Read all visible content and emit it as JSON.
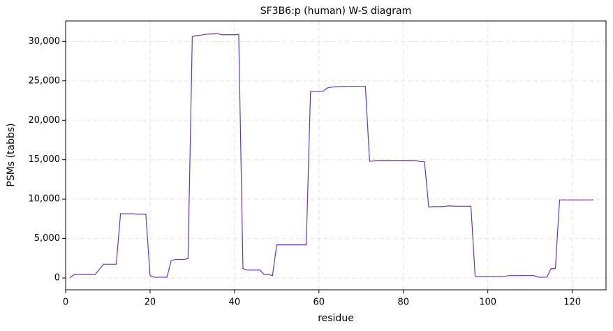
{
  "chart_data": {
    "type": "line",
    "title": "SF3B6:p (human) W-S diagram",
    "xlabel": "residue",
    "ylabel": "PSMs (tabbs)",
    "x": [
      1,
      2,
      3,
      4,
      5,
      6,
      7,
      8,
      9,
      10,
      11,
      12,
      13,
      14,
      15,
      16,
      17,
      18,
      19,
      20,
      21,
      22,
      23,
      24,
      25,
      26,
      27,
      28,
      29,
      30,
      31,
      32,
      33,
      34,
      35,
      36,
      37,
      38,
      39,
      40,
      41,
      42,
      43,
      44,
      45,
      46,
      47,
      48,
      49,
      50,
      51,
      52,
      53,
      54,
      55,
      56,
      57,
      58,
      59,
      60,
      61,
      62,
      63,
      64,
      65,
      66,
      67,
      68,
      69,
      70,
      71,
      72,
      73,
      74,
      75,
      76,
      77,
      78,
      79,
      80,
      81,
      82,
      83,
      84,
      85,
      86,
      87,
      88,
      89,
      90,
      91,
      92,
      93,
      94,
      95,
      96,
      97,
      98,
      99,
      100,
      101,
      102,
      103,
      104,
      105,
      106,
      107,
      108,
      109,
      110,
      111,
      112,
      113,
      114,
      115,
      116,
      117,
      118,
      119,
      120,
      121,
      122,
      123,
      124,
      125
    ],
    "series": [
      {
        "name": "PSMs",
        "color": "#6633cc",
        "values": [
          0,
          450,
          450,
          450,
          450,
          450,
          450,
          1100,
          1750,
          1750,
          1750,
          1750,
          8150,
          8150,
          8150,
          8150,
          8100,
          8100,
          8100,
          300,
          100,
          100,
          100,
          100,
          2200,
          2350,
          2350,
          2350,
          2450,
          30600,
          30750,
          30800,
          30900,
          30950,
          30950,
          31000,
          30850,
          30850,
          30850,
          30850,
          30900,
          1200,
          1000,
          1000,
          1000,
          1000,
          450,
          450,
          300,
          4200,
          4200,
          4200,
          4200,
          4200,
          4200,
          4200,
          4200,
          23650,
          23650,
          23650,
          23700,
          24100,
          24200,
          24250,
          24300,
          24300,
          24300,
          24300,
          24300,
          24300,
          24300,
          14800,
          14850,
          14900,
          14900,
          14900,
          14900,
          14900,
          14900,
          14900,
          14900,
          14900,
          14900,
          14750,
          14750,
          9000,
          9050,
          9050,
          9050,
          9100,
          9150,
          9100,
          9100,
          9100,
          9100,
          9100,
          200,
          200,
          200,
          200,
          200,
          200,
          200,
          200,
          300,
          300,
          300,
          300,
          300,
          300,
          300,
          100,
          100,
          100,
          1200,
          1200,
          9900,
          9900,
          9900,
          9900,
          9900,
          9900,
          9900,
          9900,
          9900
        ]
      }
    ],
    "xlim": [
      0,
      128
    ],
    "xticks": [
      0,
      20,
      40,
      60,
      80,
      100,
      120
    ],
    "ylim": [
      -1500,
      32600
    ],
    "yticks": [
      0,
      {
        "value": 5000,
        "label": "5,000"
      },
      {
        "value": 10000,
        "label": "10,000"
      },
      {
        "value": 15000,
        "label": "15,000"
      },
      {
        "value": 20000,
        "label": "20,000"
      },
      {
        "value": 25000,
        "label": "25,000"
      },
      {
        "value": 30000,
        "label": "30,000"
      }
    ],
    "grid": true
  }
}
